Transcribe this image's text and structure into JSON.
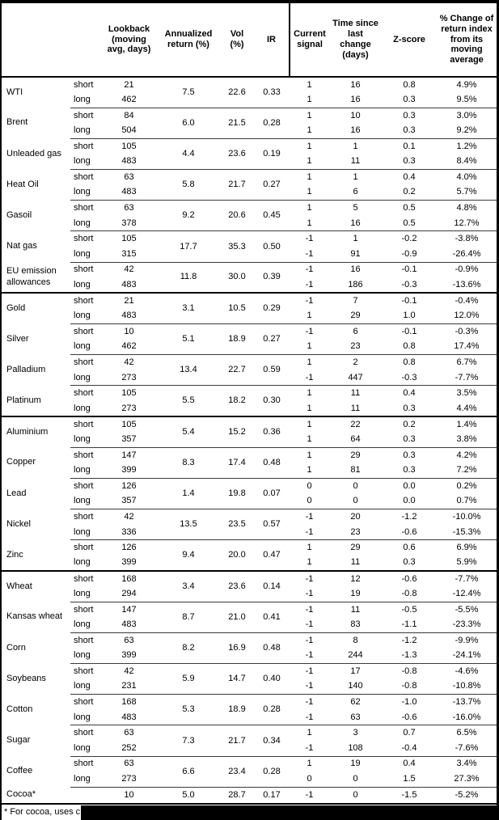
{
  "header": {
    "columns": [
      {
        "key": "name",
        "label": ""
      },
      {
        "key": "pos",
        "label": ""
      },
      {
        "key": "lookback",
        "label": "Lookback (moving avg, days)"
      },
      {
        "key": "annret",
        "label": "Annualized return (%)"
      },
      {
        "key": "vol",
        "label": "Vol (%)"
      },
      {
        "key": "ir",
        "label": "IR"
      },
      {
        "key": "signal",
        "label": "Current signal"
      },
      {
        "key": "days",
        "label": "Time since last change (days)"
      },
      {
        "key": "zscore",
        "label": "Z-score"
      },
      {
        "key": "pct",
        "label": "% Change of return index from its moving average"
      }
    ]
  },
  "commodities": [
    {
      "name": "WTI",
      "ann_return": "7.5",
      "vol": "22.6",
      "ir": "0.33",
      "section_break": false,
      "rows": [
        {
          "pos": "short",
          "lookback": "21",
          "signal": "1",
          "days": "16",
          "zscore": "0.8",
          "pct": "4.9%"
        },
        {
          "pos": "long",
          "lookback": "462",
          "signal": "1",
          "days": "16",
          "zscore": "0.3",
          "pct": "9.5%"
        }
      ]
    },
    {
      "name": "Brent",
      "ann_return": "6.0",
      "vol": "21.5",
      "ir": "0.28",
      "section_break": false,
      "rows": [
        {
          "pos": "short",
          "lookback": "84",
          "signal": "1",
          "days": "10",
          "zscore": "0.3",
          "pct": "3.0%"
        },
        {
          "pos": "long",
          "lookback": "504",
          "signal": "1",
          "days": "16",
          "zscore": "0.3",
          "pct": "9.2%"
        }
      ]
    },
    {
      "name": "Unleaded gas",
      "ann_return": "4.4",
      "vol": "23.6",
      "ir": "0.19",
      "section_break": false,
      "rows": [
        {
          "pos": "short",
          "lookback": "105",
          "signal": "1",
          "days": "1",
          "zscore": "0.1",
          "pct": "1.2%"
        },
        {
          "pos": "long",
          "lookback": "483",
          "signal": "1",
          "days": "11",
          "zscore": "0.3",
          "pct": "8.4%"
        }
      ]
    },
    {
      "name": "Heat Oil",
      "ann_return": "5.8",
      "vol": "21.7",
      "ir": "0.27",
      "section_break": false,
      "rows": [
        {
          "pos": "short",
          "lookback": "63",
          "signal": "1",
          "days": "1",
          "zscore": "0.4",
          "pct": "4.0%"
        },
        {
          "pos": "long",
          "lookback": "483",
          "signal": "1",
          "days": "6",
          "zscore": "0.2",
          "pct": "5.7%"
        }
      ]
    },
    {
      "name": "Gasoil",
      "ann_return": "9.2",
      "vol": "20.6",
      "ir": "0.45",
      "section_break": false,
      "rows": [
        {
          "pos": "short",
          "lookback": "63",
          "signal": "1",
          "days": "5",
          "zscore": "0.5",
          "pct": "4.8%"
        },
        {
          "pos": "long",
          "lookback": "378",
          "signal": "1",
          "days": "16",
          "zscore": "0.5",
          "pct": "12.7%"
        }
      ]
    },
    {
      "name": "Nat gas",
      "ann_return": "17.7",
      "vol": "35.3",
      "ir": "0.50",
      "section_break": false,
      "rows": [
        {
          "pos": "short",
          "lookback": "105",
          "signal": "-1",
          "days": "1",
          "zscore": "-0.2",
          "pct": "-3.8%"
        },
        {
          "pos": "long",
          "lookback": "315",
          "signal": "-1",
          "days": "91",
          "zscore": "-0.9",
          "pct": "-26.4%"
        }
      ]
    },
    {
      "name": "EU emission allowances",
      "ann_return": "11.8",
      "vol": "30.0",
      "ir": "0.39",
      "section_break": false,
      "rows": [
        {
          "pos": "short",
          "lookback": "42",
          "signal": "-1",
          "days": "16",
          "zscore": "-0.1",
          "pct": "-0.9%"
        },
        {
          "pos": "long",
          "lookback": "483",
          "signal": "-1",
          "days": "186",
          "zscore": "-0.3",
          "pct": "-13.6%"
        }
      ]
    },
    {
      "name": "Gold",
      "ann_return": "3.1",
      "vol": "10.5",
      "ir": "0.29",
      "section_break": true,
      "rows": [
        {
          "pos": "short",
          "lookback": "21",
          "signal": "-1",
          "days": "7",
          "zscore": "-0.1",
          "pct": "-0.4%"
        },
        {
          "pos": "long",
          "lookback": "483",
          "signal": "1",
          "days": "29",
          "zscore": "1.0",
          "pct": "12.0%"
        }
      ]
    },
    {
      "name": "Silver",
      "ann_return": "5.1",
      "vol": "18.9",
      "ir": "0.27",
      "section_break": false,
      "rows": [
        {
          "pos": "short",
          "lookback": "10",
          "signal": "-1",
          "days": "6",
          "zscore": "-0.1",
          "pct": "-0.3%"
        },
        {
          "pos": "long",
          "lookback": "462",
          "signal": "1",
          "days": "23",
          "zscore": "0.8",
          "pct": "17.4%"
        }
      ]
    },
    {
      "name": "Palladium",
      "ann_return": "13.4",
      "vol": "22.7",
      "ir": "0.59",
      "section_break": false,
      "rows": [
        {
          "pos": "short",
          "lookback": "42",
          "signal": "1",
          "days": "2",
          "zscore": "0.8",
          "pct": "6.7%"
        },
        {
          "pos": "long",
          "lookback": "273",
          "signal": "-1",
          "days": "447",
          "zscore": "-0.3",
          "pct": "-7.7%"
        }
      ]
    },
    {
      "name": "Platinum",
      "ann_return": "5.5",
      "vol": "18.2",
      "ir": "0.30",
      "section_break": false,
      "rows": [
        {
          "pos": "short",
          "lookback": "105",
          "signal": "1",
          "days": "11",
          "zscore": "0.4",
          "pct": "3.5%"
        },
        {
          "pos": "long",
          "lookback": "273",
          "signal": "1",
          "days": "11",
          "zscore": "0.3",
          "pct": "4.4%"
        }
      ]
    },
    {
      "name": "Aluminium",
      "ann_return": "5.4",
      "vol": "15.2",
      "ir": "0.36",
      "section_break": true,
      "rows": [
        {
          "pos": "short",
          "lookback": "105",
          "signal": "1",
          "days": "22",
          "zscore": "0.2",
          "pct": "1.4%"
        },
        {
          "pos": "long",
          "lookback": "357",
          "signal": "1",
          "days": "64",
          "zscore": "0.3",
          "pct": "3.8%"
        }
      ]
    },
    {
      "name": "Copper",
      "ann_return": "8.3",
      "vol": "17.4",
      "ir": "0.48",
      "section_break": false,
      "rows": [
        {
          "pos": "short",
          "lookback": "147",
          "signal": "1",
          "days": "29",
          "zscore": "0.3",
          "pct": "4.2%"
        },
        {
          "pos": "long",
          "lookback": "399",
          "signal": "1",
          "days": "81",
          "zscore": "0.3",
          "pct": "7.2%"
        }
      ]
    },
    {
      "name": "Lead",
      "ann_return": "1.4",
      "vol": "19.8",
      "ir": "0.07",
      "section_break": false,
      "rows": [
        {
          "pos": "short",
          "lookback": "126",
          "signal": "0",
          "days": "0",
          "zscore": "0.0",
          "pct": "0.2%"
        },
        {
          "pos": "long",
          "lookback": "357",
          "signal": "0",
          "days": "0",
          "zscore": "0.0",
          "pct": "0.7%"
        }
      ]
    },
    {
      "name": "Nickel",
      "ann_return": "13.5",
      "vol": "23.5",
      "ir": "0.57",
      "section_break": false,
      "rows": [
        {
          "pos": "short",
          "lookback": "42",
          "signal": "-1",
          "days": "20",
          "zscore": "-1.2",
          "pct": "-10.0%"
        },
        {
          "pos": "long",
          "lookback": "336",
          "signal": "-1",
          "days": "23",
          "zscore": "-0.6",
          "pct": "-15.3%"
        }
      ]
    },
    {
      "name": "Zinc",
      "ann_return": "9.4",
      "vol": "20.0",
      "ir": "0.47",
      "section_break": false,
      "rows": [
        {
          "pos": "short",
          "lookback": "126",
          "signal": "1",
          "days": "29",
          "zscore": "0.6",
          "pct": "6.9%"
        },
        {
          "pos": "long",
          "lookback": "399",
          "signal": "1",
          "days": "11",
          "zscore": "0.3",
          "pct": "5.9%"
        }
      ]
    },
    {
      "name": "Wheat",
      "ann_return": "3.4",
      "vol": "23.6",
      "ir": "0.14",
      "section_break": true,
      "rows": [
        {
          "pos": "short",
          "lookback": "168",
          "signal": "-1",
          "days": "12",
          "zscore": "-0.6",
          "pct": "-7.7%"
        },
        {
          "pos": "long",
          "lookback": "294",
          "signal": "-1",
          "days": "19",
          "zscore": "-0.8",
          "pct": "-12.4%"
        }
      ]
    },
    {
      "name": "Kansas wheat",
      "ann_return": "8.7",
      "vol": "21.0",
      "ir": "0.41",
      "section_break": false,
      "rows": [
        {
          "pos": "short",
          "lookback": "147",
          "signal": "-1",
          "days": "11",
          "zscore": "-0.5",
          "pct": "-5.5%"
        },
        {
          "pos": "long",
          "lookback": "483",
          "signal": "-1",
          "days": "83",
          "zscore": "-1.1",
          "pct": "-23.3%"
        }
      ]
    },
    {
      "name": "Corn",
      "ann_return": "8.2",
      "vol": "16.9",
      "ir": "0.48",
      "section_break": false,
      "rows": [
        {
          "pos": "short",
          "lookback": "63",
          "signal": "-1",
          "days": "8",
          "zscore": "-1.2",
          "pct": "-9.9%"
        },
        {
          "pos": "long",
          "lookback": "399",
          "signal": "-1",
          "days": "244",
          "zscore": "-1.3",
          "pct": "-24.1%"
        }
      ]
    },
    {
      "name": "Soybeans",
      "ann_return": "5.9",
      "vol": "14.7",
      "ir": "0.40",
      "section_break": false,
      "rows": [
        {
          "pos": "short",
          "lookback": "42",
          "signal": "-1",
          "days": "17",
          "zscore": "-0.8",
          "pct": "-4.6%"
        },
        {
          "pos": "long",
          "lookback": "231",
          "signal": "-1",
          "days": "140",
          "zscore": "-0.8",
          "pct": "-10.8%"
        }
      ]
    },
    {
      "name": "Cotton",
      "ann_return": "5.3",
      "vol": "18.9",
      "ir": "0.28",
      "section_break": false,
      "rows": [
        {
          "pos": "short",
          "lookback": "168",
          "signal": "-1",
          "days": "62",
          "zscore": "-1.0",
          "pct": "-13.7%"
        },
        {
          "pos": "long",
          "lookback": "483",
          "signal": "-1",
          "days": "63",
          "zscore": "-0.6",
          "pct": "-16.0%"
        }
      ]
    },
    {
      "name": "Sugar",
      "ann_return": "7.3",
      "vol": "21.7",
      "ir": "0.34",
      "section_break": false,
      "rows": [
        {
          "pos": "short",
          "lookback": "63",
          "signal": "1",
          "days": "3",
          "zscore": "0.7",
          "pct": "6.5%"
        },
        {
          "pos": "long",
          "lookback": "252",
          "signal": "-1",
          "days": "108",
          "zscore": "-0.4",
          "pct": "-7.6%"
        }
      ]
    },
    {
      "name": "Coffee",
      "ann_return": "6.6",
      "vol": "23.4",
      "ir": "0.28",
      "section_break": false,
      "rows": [
        {
          "pos": "short",
          "lookback": "63",
          "signal": "1",
          "days": "19",
          "zscore": "0.4",
          "pct": "3.4%"
        },
        {
          "pos": "long",
          "lookback": "273",
          "signal": "0",
          "days": "0",
          "zscore": "1.5",
          "pct": "27.3%"
        }
      ]
    },
    {
      "name": "Cocoa*",
      "ann_return": "5.0",
      "vol": "28.7",
      "ir": "0.17",
      "section_break": false,
      "rows": [
        {
          "pos": "",
          "lookback": "10",
          "signal": "-1",
          "days": "0",
          "zscore": "-1.5",
          "pct": "-5.2%"
        }
      ]
    }
  ],
  "footer": {
    "note": "* For cocoa, uses c"
  },
  "colors": {
    "text": "#000000",
    "background": "#ffffff",
    "rule_thin": "#3a3a3a",
    "rule_thick": "#000000",
    "redaction": "#000000"
  }
}
